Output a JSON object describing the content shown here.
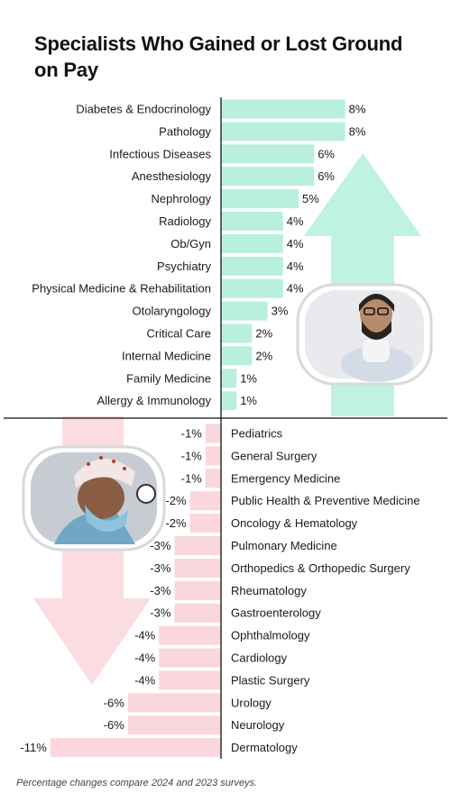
{
  "title": "Specialists Who Gained or Lost Ground on Pay",
  "footnote": "Percentage changes compare 2024 and 2023 surveys.",
  "colors": {
    "gain": "#b8f0dc",
    "gain_arrow": "#bff2e0",
    "loss": "#fad7dc",
    "loss_arrow": "#fbdde1",
    "axis": "#111111"
  },
  "chart_data": [
    {
      "type": "bar",
      "orientation": "horizontal",
      "categories": [
        "Diabetes & Endocrinology",
        "Pathology",
        "Infectious Diseases",
        "Anesthesiology",
        "Nephrology",
        "Radiology",
        "Ob/Gyn",
        "Psychiatry",
        "Physical Medicine & Rehabilitation",
        "Otolaryngology",
        "Critical Care",
        "Internal Medicine",
        "Family Medicine",
        "Allergy & Immunology"
      ],
      "values": [
        8,
        8,
        6,
        6,
        5,
        4,
        4,
        4,
        4,
        3,
        2,
        2,
        1,
        1
      ],
      "labels": [
        "8%",
        "8%",
        "6%",
        "6%",
        "5%",
        "4%",
        "4%",
        "4%",
        "4%",
        "3%",
        "2%",
        "2%",
        "1%",
        "1%"
      ],
      "unit": "%",
      "grid": false
    },
    {
      "type": "bar",
      "orientation": "horizontal",
      "categories": [
        "Pediatrics",
        "General Surgery",
        "Emergency Medicine",
        "Public Health & Preventive Medicine",
        "Oncology & Hematology",
        "Pulmonary Medicine",
        "Orthopedics & Orthopedic Surgery",
        "Rheumatology",
        "Gastroenterology",
        "Ophthalmology",
        "Cardiology",
        "Plastic Surgery",
        "Urology",
        "Neurology",
        "Dermatology"
      ],
      "values": [
        -1,
        -1,
        -1,
        -2,
        -2,
        -3,
        -3,
        -3,
        -3,
        -4,
        -4,
        -4,
        -6,
        -6,
        -11
      ],
      "labels": [
        "-1%",
        "-1%",
        "-1%",
        "-2%",
        "-2%",
        "-3%",
        "-3%",
        "-3%",
        "-3%",
        "-4%",
        "-4%",
        "-4%",
        "-6%",
        "-6%",
        "-11%"
      ],
      "unit": "%",
      "grid": false
    }
  ],
  "photos": {
    "top": "male-doctor-photo",
    "bottom": "surgeon-photo"
  }
}
